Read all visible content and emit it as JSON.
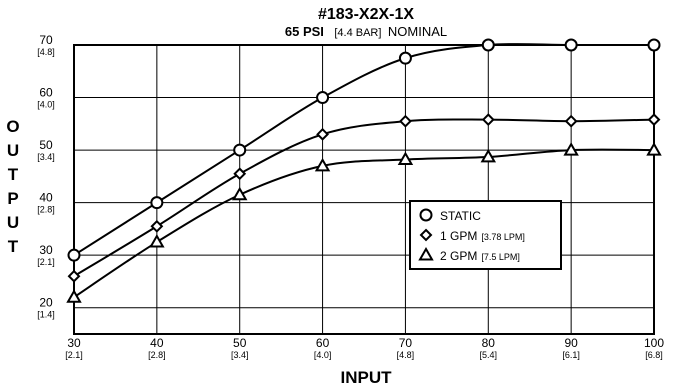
{
  "chart_data": {
    "type": "line",
    "title": "#183-X2X-1X",
    "subtitle": {
      "bold": "65 PSI",
      "bracket": "[4.4 BAR]",
      "rest": "NOMINAL"
    },
    "xlabel": "INPUT",
    "ylabel_letters": [
      "O",
      "U",
      "T",
      "P",
      "U",
      "T"
    ],
    "x_ticks": [
      {
        "value": 30,
        "label": "30",
        "sub": "[2.1]"
      },
      {
        "value": 40,
        "label": "40",
        "sub": "[2.8]"
      },
      {
        "value": 50,
        "label": "50",
        "sub": "[3.4]"
      },
      {
        "value": 60,
        "label": "60",
        "sub": "[4.0]"
      },
      {
        "value": 70,
        "label": "70",
        "sub": "[4.8]"
      },
      {
        "value": 80,
        "label": "80",
        "sub": "[5.4]"
      },
      {
        "value": 90,
        "label": "90",
        "sub": "[6.1]"
      },
      {
        "value": 100,
        "label": "100",
        "sub": "[6.8]"
      }
    ],
    "y_ticks": [
      {
        "value": 20,
        "label": "20",
        "sub": "[1.4]"
      },
      {
        "value": 30,
        "label": "30",
        "sub": "[2.1]"
      },
      {
        "value": 40,
        "label": "40",
        "sub": "[2.8]"
      },
      {
        "value": 50,
        "label": "50",
        "sub": "[3.4]"
      },
      {
        "value": 60,
        "label": "60",
        "sub": "[4.0]"
      },
      {
        "value": 70,
        "label": "70",
        "sub": "[4.8]"
      }
    ],
    "xlim": [
      30,
      100
    ],
    "ylim": [
      15,
      70
    ],
    "grid": true,
    "legend_position": "lower-right",
    "x": [
      30,
      40,
      50,
      60,
      70,
      80,
      90,
      100
    ],
    "series": [
      {
        "name": "STATIC",
        "sub": "",
        "marker": "circle",
        "values": [
          30,
          40,
          50,
          60,
          67.5,
          70,
          70,
          70
        ]
      },
      {
        "name": "1 GPM",
        "sub": "[3.78 LPM]",
        "marker": "diamond",
        "values": [
          26,
          35.5,
          45.5,
          53,
          55.5,
          55.8,
          55.5,
          55.8
        ]
      },
      {
        "name": "2 GPM",
        "sub": "[7.5 LPM]",
        "marker": "triangle",
        "values": [
          22,
          32.5,
          41.5,
          47,
          48.2,
          48.7,
          50,
          50
        ]
      }
    ],
    "colors": {
      "line": "#000000",
      "grid": "#000000",
      "background": "#ffffff"
    }
  }
}
